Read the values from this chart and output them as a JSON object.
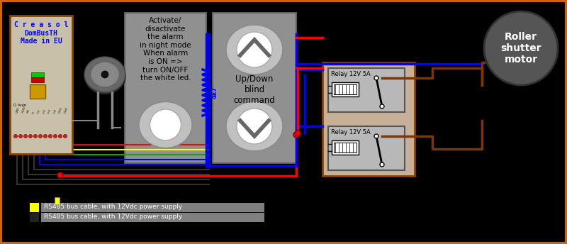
{
  "bg_color": "#000000",
  "border_color": "#cc6600",
  "title": "Roller\nshutter\nmotor",
  "creasol_text": "C r e a s o l\nDomBusTH\nMade in EU",
  "creasol_bg": "#c8c0a8",
  "creasol_border": "#884400",
  "button_bg": "#909090",
  "button_border": "#606060",
  "relay_box_bg": "#c8b098",
  "relay_box_border": "#884400",
  "relay_inner_bg": "#b8b8b8",
  "relay_label": "Relay 12V 5A",
  "alarm_text": "Activate/\ndisactivate\nthe alarm\nin night mode\nWhen alarm\nis ON =>\nturn ON/OFF\nthe white led.",
  "blind_text": "Up/Down\nblind\ncommand",
  "rs485_text1": "RS485 bus cable, with 12Vdc power supply",
  "rs485_text2": "RS485 bus cable, with 12Vdc power supply",
  "wire_blue": "#0000ff",
  "wire_red": "#ff0000",
  "wire_brown": "#7a3800",
  "wire_yellow": "#ffff00",
  "wire_green": "#00aa00",
  "wire_gray": "#888888",
  "wire_black": "#333333"
}
